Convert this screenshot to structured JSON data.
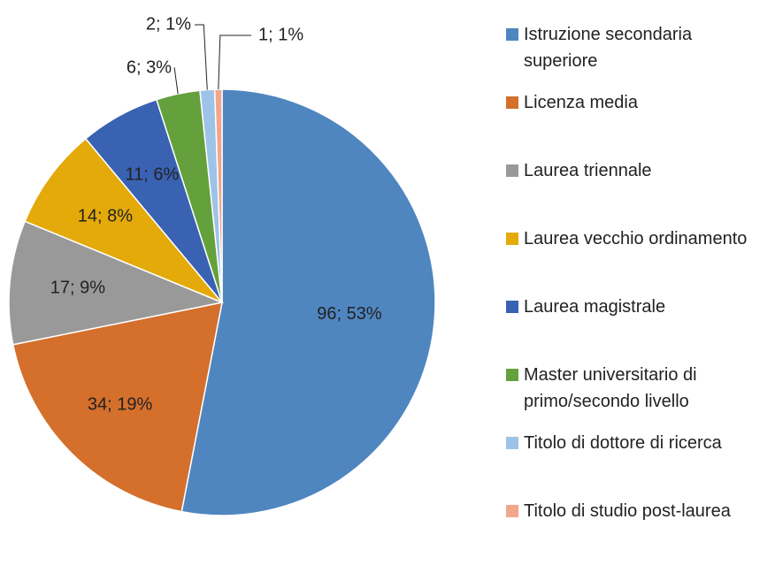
{
  "chart_data": {
    "type": "pie",
    "categories": [
      "Istruzione secondaria superiore",
      "Licenza media",
      "Laurea triennale",
      "Laurea vecchio ordinamento",
      "Laurea magistrale",
      "Master universitario di primo/secondo livello",
      "Titolo di dottore di ricerca",
      "Titolo di studio post-laurea"
    ],
    "values": [
      96,
      34,
      17,
      14,
      11,
      6,
      2,
      1
    ],
    "value_labels": [
      "96; 53%",
      "34; 19%",
      "17; 9%",
      "14; 8%",
      "11; 6%",
      "6; 3%",
      "2; 1%",
      "1; 1%"
    ],
    "colors": [
      "#4f86c0",
      "#d46f2c",
      "#999999",
      "#e3aa0a",
      "#3a62b2",
      "#64a03c",
      "#9ec3e8",
      "#f2a68b"
    ],
    "legend": "right"
  }
}
